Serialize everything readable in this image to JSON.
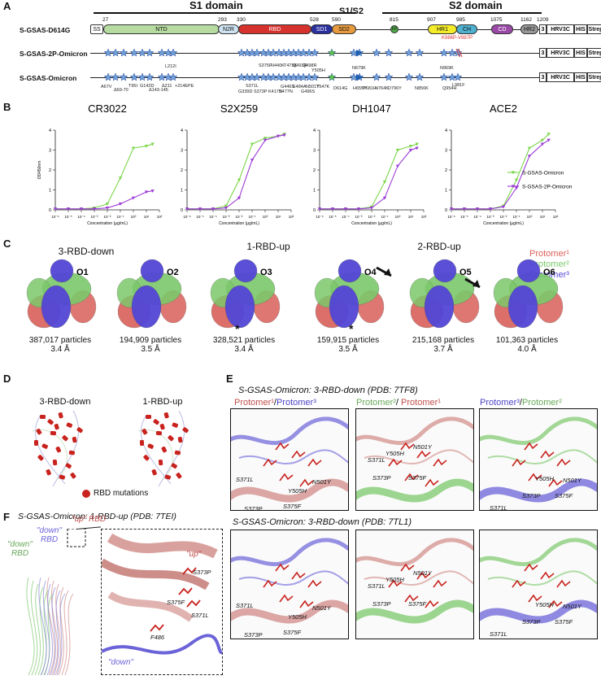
{
  "panels": {
    "a": "A",
    "b": "B",
    "c": "C",
    "d": "D",
    "e": "E",
    "f": "F"
  },
  "panel_a": {
    "s1_domain": "S1 domain",
    "s2_domain": "S2 domain",
    "s1s2": "S1/S2",
    "rows": [
      "S-GSAS-D614G",
      "S-GSAS-2P-Omicron",
      "S-GSAS-Omicron"
    ],
    "positions": [
      "27",
      "293",
      "330",
      "528",
      "590",
      "815",
      "907",
      "985",
      "1075",
      "1162",
      "1209"
    ],
    "domains": [
      "SS",
      "NTD",
      "N2R",
      "RBD",
      "SD1",
      "SD2",
      "FP",
      "HR1",
      "CH",
      "CD",
      "HR2"
    ],
    "tags": [
      "3",
      "HRV3C",
      "HIS",
      "Strep"
    ],
    "k986p": "K986P-V987P",
    "omicron_muts": [
      "L212I",
      "A67V",
      "Δ69-70",
      "T95I",
      "G142D",
      "Δ143-145",
      "Δ211",
      "+214EPE",
      "G339D",
      "S371L",
      "S373P",
      "S375F",
      "K417N",
      "N440K",
      "G446S",
      "S477N",
      "T478K",
      "E484A",
      "Q493R",
      "G496S",
      "Q498R",
      "N501Y",
      "Y505H",
      "T547K",
      "D614G",
      "H655Y",
      "N679K",
      "P681H",
      "N764K",
      "D796Y",
      "N856K",
      "Q954H",
      "N969K",
      "L981F"
    ]
  },
  "panel_b": {
    "titles": [
      "CR3022",
      "S2X259",
      "DH1047",
      "ACE2"
    ],
    "ylabel": "OD450nm",
    "xlabel": "Concentration (µg/mL)",
    "yticks": [
      "0",
      "1",
      "2",
      "3",
      "4"
    ],
    "xticks": [
      "10⁻⁶",
      "10⁻⁵",
      "10⁻⁴",
      "10⁻³",
      "10⁻²",
      "10⁻¹",
      "10⁰",
      "10¹",
      "10²"
    ],
    "legend": [
      "S-GSAS-Omicron",
      "S-GSAS-2P-Omicron"
    ],
    "colors": {
      "omicron": "#7bd64a",
      "omicron2p": "#9b3bd6"
    }
  },
  "chart_data": [
    {
      "type": "line",
      "title": "CR3022",
      "x": [
        1e-06,
        1e-05,
        0.0001,
        0.001,
        0.01,
        0.1,
        1,
        10,
        30
      ],
      "series": [
        {
          "name": "S-GSAS-Omicron",
          "values": [
            0.05,
            0.05,
            0.05,
            0.1,
            0.3,
            1.6,
            3.1,
            3.2,
            3.3
          ]
        },
        {
          "name": "S-GSAS-2P-Omicron",
          "values": [
            0.05,
            0.05,
            0.05,
            0.05,
            0.1,
            0.3,
            0.6,
            0.9,
            0.95
          ]
        }
      ],
      "xlabel": "Concentration (µg/mL)",
      "ylabel": "OD450nm",
      "ylim": [
        0,
        4
      ],
      "scale": "log"
    },
    {
      "type": "line",
      "title": "S2X259",
      "x": [
        1e-06,
        1e-05,
        0.0001,
        0.001,
        0.01,
        0.1,
        1,
        10,
        30
      ],
      "series": [
        {
          "name": "S-GSAS-Omicron",
          "values": [
            0.05,
            0.05,
            0.05,
            0.2,
            1.5,
            3.3,
            3.6,
            3.7,
            3.8
          ]
        },
        {
          "name": "S-GSAS-2P-Omicron",
          "values": [
            0.05,
            0.05,
            0.05,
            0.1,
            0.6,
            2.5,
            3.5,
            3.7,
            3.75
          ]
        }
      ],
      "xlabel": "Concentration (µg/mL)",
      "ylabel": "OD450nm",
      "ylim": [
        0,
        4
      ],
      "scale": "log"
    },
    {
      "type": "line",
      "title": "DH1047",
      "x": [
        1e-06,
        1e-05,
        0.0001,
        0.001,
        0.01,
        0.1,
        1,
        10,
        30
      ],
      "series": [
        {
          "name": "S-GSAS-Omicron",
          "values": [
            0.05,
            0.05,
            0.05,
            0.05,
            0.15,
            1.4,
            3.0,
            3.2,
            3.3
          ]
        },
        {
          "name": "S-GSAS-2P-Omicron",
          "values": [
            0.05,
            0.05,
            0.05,
            0.05,
            0.1,
            0.6,
            2.2,
            3.0,
            3.1
          ]
        }
      ],
      "xlabel": "Concentration (µg/mL)",
      "ylabel": "OD450nm",
      "ylim": [
        0,
        4
      ],
      "scale": "log"
    },
    {
      "type": "line",
      "title": "ACE2",
      "x": [
        1e-06,
        1e-05,
        0.0001,
        0.001,
        0.01,
        0.1,
        1,
        10,
        30
      ],
      "series": [
        {
          "name": "S-GSAS-Omicron",
          "values": [
            0.05,
            0.05,
            0.05,
            0.05,
            0.2,
            1.5,
            3.1,
            3.5,
            3.8
          ]
        },
        {
          "name": "S-GSAS-2P-Omicron",
          "values": [
            0.05,
            0.05,
            0.05,
            0.05,
            0.15,
            1.1,
            2.7,
            3.3,
            3.5
          ]
        }
      ],
      "xlabel": "Concentration (µg/mL)",
      "ylabel": "OD450nm",
      "ylim": [
        0,
        4
      ],
      "scale": "log"
    }
  ],
  "panel_c": {
    "group_titles": [
      "3-RBD-down",
      "1-RBD-up",
      "2-RBD-up"
    ],
    "legend": [
      "Protomer¹",
      "Protomer²",
      "Protomer³"
    ],
    "legend_colors": [
      "#d9605a",
      "#7cc86b",
      "#5346d6"
    ],
    "maps": [
      {
        "id": "O1",
        "particles": "387,017 particles",
        "res": "3.4 Å"
      },
      {
        "id": "O2",
        "particles": "194,909 particles",
        "res": "3.5 Å"
      },
      {
        "id": "O3",
        "particles": "328,521 particles",
        "res": "3.4 Å"
      },
      {
        "id": "O4",
        "particles": "159,915 particles",
        "res": "3.5 Å"
      },
      {
        "id": "O5",
        "particles": "215,168 particles",
        "res": "3.7 Å"
      },
      {
        "id": "O6",
        "particles": "101,363 particles",
        "res": "4.0 Å"
      }
    ],
    "star": "*"
  },
  "panel_d": {
    "titles": [
      "3-RBD-down",
      "1-RBD-up"
    ],
    "legend": "RBD mutations"
  },
  "panel_e": {
    "title1": "S-GSAS-Omicron: 3-RBD-down (PDB: 7TF8)",
    "title2": "S-GSAS-Omicron: 3-RBD-down (PDB: 7TL1)",
    "headers": [
      [
        "Protomer¹",
        "/",
        "Protomer³"
      ],
      [
        "Protomer²",
        "/ ",
        "Protomer¹"
      ],
      [
        "Protomer³",
        "/",
        "Protomer²"
      ]
    ],
    "residues": [
      "S371L",
      "S373P",
      "S375F",
      "Y505H",
      "N501Y"
    ]
  },
  "panel_f": {
    "title": "S-GSAS-Omicron: 1-RBD-up (PDB: 7TEI)",
    "down1": "\"down\"",
    "rbd1": "RBD",
    "down2": "\"down\"",
    "rbd2": "RBD",
    "up": "\"up\" RBD",
    "inset_up": "\"up\"",
    "inset_down": "\"down\"",
    "residues": [
      "S373P",
      "S375F",
      "S371L",
      "F486"
    ]
  }
}
